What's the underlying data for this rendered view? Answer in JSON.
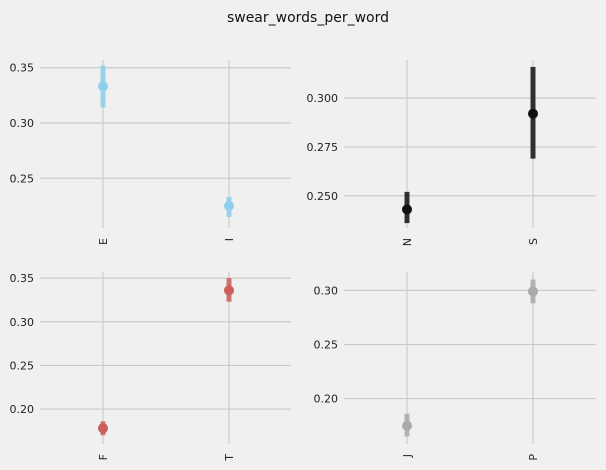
{
  "title": "swear_words_per_word",
  "chart_data": [
    {
      "type": "pointplot",
      "categories": [
        "E",
        "I"
      ],
      "values": [
        0.333,
        0.225
      ],
      "ci_low": [
        0.314,
        0.215
      ],
      "ci_high": [
        0.352,
        0.233
      ],
      "color": "#8ecfed",
      "yticks": [
        0.25,
        0.3,
        0.35
      ],
      "ytick_labels": [
        "0.25",
        "0.30",
        "0.35"
      ],
      "ylim": [
        0.205,
        0.357
      ],
      "grid": true
    },
    {
      "type": "pointplot",
      "categories": [
        "N",
        "S"
      ],
      "values": [
        0.243,
        0.292
      ],
      "ci_low": [
        0.236,
        0.269
      ],
      "ci_high": [
        0.252,
        0.316
      ],
      "color": "#111111",
      "yticks": [
        0.25,
        0.275,
        0.3
      ],
      "ytick_labels": [
        "0.250",
        "0.275",
        "0.300"
      ],
      "ylim": [
        0.2335,
        0.3195
      ],
      "grid": true
    },
    {
      "type": "pointplot",
      "categories": [
        "F",
        "T"
      ],
      "values": [
        0.178,
        0.336
      ],
      "ci_low": [
        0.17,
        0.323
      ],
      "ci_high": [
        0.186,
        0.35
      ],
      "color": "#cd5c5c",
      "yticks": [
        0.2,
        0.25,
        0.3,
        0.35
      ],
      "ytick_labels": [
        "0.20",
        "0.25",
        "0.30",
        "0.35"
      ],
      "ylim": [
        0.16,
        0.357
      ],
      "grid": true
    },
    {
      "type": "pointplot",
      "categories": [
        "J",
        "P"
      ],
      "values": [
        0.175,
        0.299
      ],
      "ci_low": [
        0.165,
        0.288
      ],
      "ci_high": [
        0.186,
        0.31
      ],
      "color": "#a9a9a9",
      "yticks": [
        0.2,
        0.25,
        0.3
      ],
      "ytick_labels": [
        "0.20",
        "0.25",
        "0.30"
      ],
      "ylim": [
        0.158,
        0.317
      ],
      "grid": true
    }
  ]
}
